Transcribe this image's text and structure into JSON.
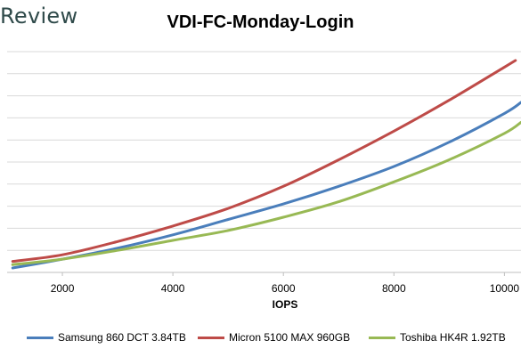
{
  "brand": {
    "text": "Review"
  },
  "chart_data": {
    "type": "line",
    "title": "VDI-FC-Monday-Login",
    "xlabel": "IOPS",
    "ylabel": "",
    "xlim": [
      1000,
      10300
    ],
    "ylim": [
      0,
      10
    ],
    "x_ticks": [
      2000,
      4000,
      6000,
      8000,
      10000
    ],
    "x_tick_labels": [
      "2000",
      "4000",
      "6000",
      "8000",
      "10000"
    ],
    "y_gridlines": [
      1,
      2,
      3,
      4,
      5,
      6,
      7,
      8,
      9,
      10
    ],
    "grid": true,
    "legend_position": "bottom",
    "series": [
      {
        "name": "Samsung 860 DCT 3.84TB",
        "color": "#4a7ebb",
        "x": [
          1100,
          2000,
          3000,
          4000,
          5000,
          6000,
          7000,
          8000,
          9000,
          10000,
          10300
        ],
        "y": [
          0.2,
          0.6,
          1.1,
          1.7,
          2.4,
          3.1,
          3.9,
          4.8,
          5.9,
          7.2,
          7.7
        ]
      },
      {
        "name": "Micron 5100 MAX 960GB",
        "color": "#be4b48",
        "x": [
          1100,
          2000,
          3000,
          4000,
          5000,
          6000,
          7000,
          8000,
          9000,
          10000,
          10200
        ],
        "y": [
          0.5,
          0.8,
          1.4,
          2.1,
          2.9,
          3.9,
          5.1,
          6.4,
          7.8,
          9.3,
          9.6
        ]
      },
      {
        "name": "Toshiba HK4R 1.92TB",
        "color": "#98b954",
        "x": [
          1100,
          2000,
          3000,
          4000,
          5000,
          6000,
          7000,
          8000,
          9000,
          10000,
          10300
        ],
        "y": [
          0.35,
          0.6,
          1.0,
          1.45,
          1.9,
          2.5,
          3.2,
          4.1,
          5.1,
          6.3,
          6.8
        ]
      }
    ]
  }
}
